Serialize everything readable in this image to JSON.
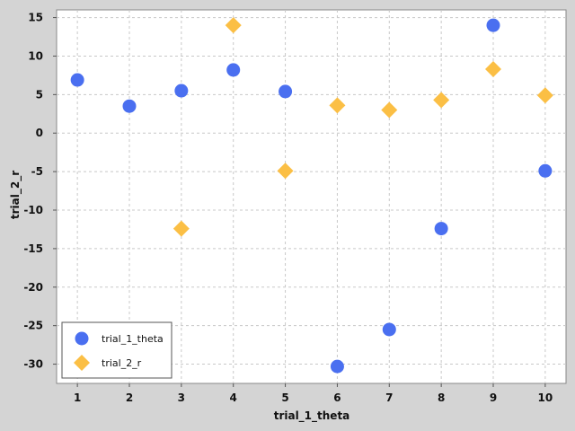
{
  "chart_data": {
    "type": "scatter",
    "title": "",
    "xlabel": "trial_1_theta",
    "ylabel": "trial_2_r",
    "xlim": [
      0.6,
      10.4
    ],
    "ylim": [
      -32.5,
      16.0
    ],
    "xticks": [
      1,
      2,
      3,
      4,
      5,
      6,
      7,
      8,
      9,
      10
    ],
    "yticks": [
      15,
      10,
      5,
      0,
      -5,
      -10,
      -15,
      -20,
      -25,
      -30
    ],
    "grid": true,
    "legend_position": "bottom-left",
    "series": [
      {
        "name": "trial_1_theta",
        "marker": "circle",
        "color": "#4a6ff0",
        "x": [
          1,
          2,
          3,
          4,
          5,
          6,
          7,
          8,
          9,
          10
        ],
        "y": [
          6.9,
          3.5,
          5.5,
          8.2,
          5.4,
          -30.3,
          -25.5,
          -12.4,
          14.0,
          -4.9
        ]
      },
      {
        "name": "trial_2_r",
        "marker": "diamond",
        "color": "#fbbf45",
        "x": [
          3,
          4,
          5,
          6,
          7,
          8,
          9,
          10
        ],
        "y": [
          -12.4,
          14.0,
          -4.9,
          3.6,
          3.0,
          4.3,
          8.3,
          4.9
        ]
      }
    ]
  }
}
